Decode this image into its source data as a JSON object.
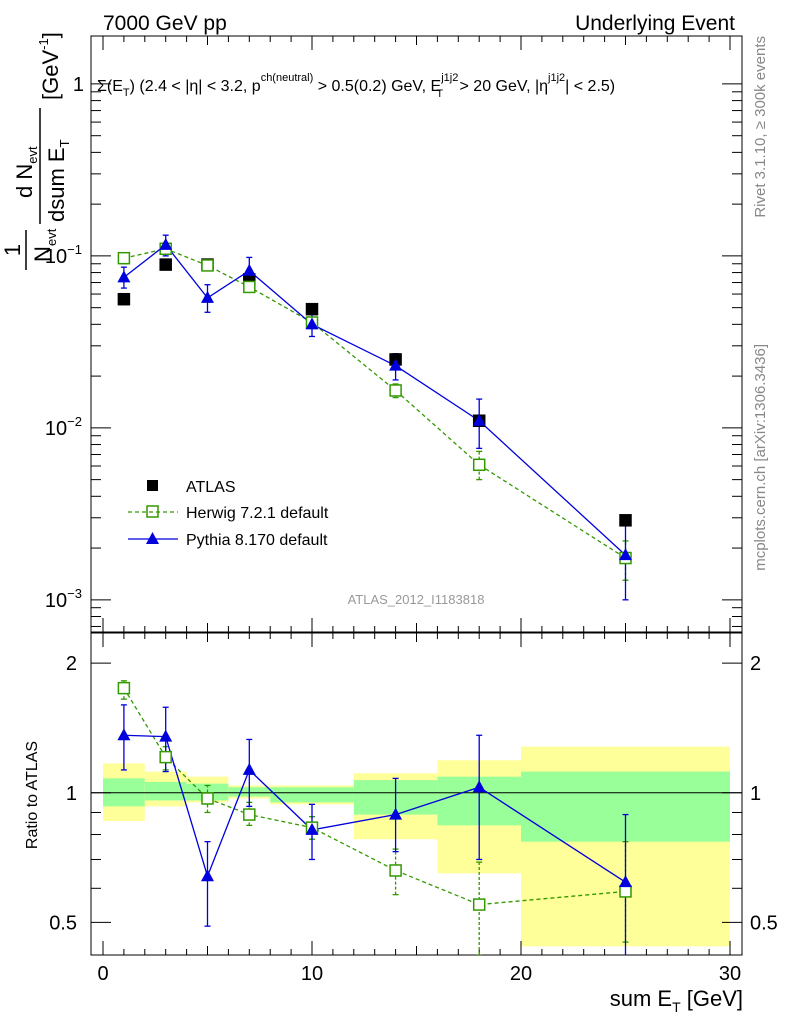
{
  "header": {
    "left": "7000 GeV pp",
    "right": "Underlying Event"
  },
  "selection": {
    "sigma": "Σ(E",
    "sub_t": "T",
    "rest1": ") (2.4 < |η| < 3.2, p",
    "sup_ch": "ch(neutral)",
    "rest2": " > 0.5(0.2) GeV, E",
    "sup_j": "j1j2",
    "sub_t2": "T",
    "rest3": " > 20 GeV, |η",
    "sup_j2": "j1j2",
    "rest4": "| < 2.5)"
  },
  "side_labels": {
    "rivet": "Rivet 3.1.10, ≥ 300k events",
    "mcplots": "mcplots.cern.ch [arXiv:1306.3436]"
  },
  "watermark": "ATLAS_2012_I1183818",
  "ylabel_main": {
    "one": "1",
    "n": "N",
    "n_sub": "evt",
    "frac_num": "d N",
    "frac_num_sub": "evt",
    "frac_den": "dsum E",
    "frac_den_sub": "T",
    "unit": "[GeV",
    "unit_sup": "-1",
    "unit_close": "]"
  },
  "ylabel_ratio": "Ratio to ATLAS",
  "xlabel": {
    "text": "sum E",
    "sub": "T",
    "unit": " [GeV]"
  },
  "legend": [
    {
      "label": "ATLAS"
    },
    {
      "label": "Herwig 7.2.1 default"
    },
    {
      "label": "Pythia 8.170 default"
    }
  ],
  "colors": {
    "atlas": "#000000",
    "herwig": "#339900",
    "pythia": "#0000dd",
    "band_inner": "#99ff99",
    "band_outer": "#ffff99"
  },
  "chart_data": {
    "type": "scatter",
    "x_axis": {
      "range": [
        0,
        30
      ],
      "ticks": [
        0,
        10,
        20,
        30
      ]
    },
    "main_panel": {
      "yscale": "log",
      "ylim": [
        0.00065,
        1.9
      ],
      "yticks": [
        {
          "value": 1,
          "label": "1"
        },
        {
          "value": 0.1,
          "label": "10",
          "exp": "−1"
        },
        {
          "value": 0.01,
          "label": "10",
          "exp": "−2"
        },
        {
          "value": 0.001,
          "label": "10",
          "exp": "−3"
        }
      ]
    },
    "ratio_panel": {
      "yscale": "log",
      "ylim": [
        0.42,
        2.35
      ],
      "yticks": [
        0.5,
        1,
        2
      ],
      "reference": 1
    },
    "bins": [
      {
        "lo": 0,
        "hi": 2,
        "x": 1
      },
      {
        "lo": 2,
        "hi": 4,
        "x": 3
      },
      {
        "lo": 4,
        "hi": 6,
        "x": 5
      },
      {
        "lo": 6,
        "hi": 8,
        "x": 7
      },
      {
        "lo": 8,
        "hi": 12,
        "x": 10
      },
      {
        "lo": 12,
        "hi": 16,
        "x": 14
      },
      {
        "lo": 16,
        "hi": 20,
        "x": 18
      },
      {
        "lo": 20,
        "hi": 30,
        "x": 25
      }
    ],
    "atlas": {
      "name": "ATLAS",
      "values": [
        0.056,
        0.089,
        0.089,
        0.073,
        0.049,
        0.025,
        0.011,
        0.0029
      ],
      "band_inner": [
        [
          0.93,
          1.08
        ],
        [
          0.96,
          1.06
        ],
        [
          0.96,
          1.05
        ],
        [
          0.98,
          1.03
        ],
        [
          0.95,
          1.03
        ],
        [
          0.89,
          1.07
        ],
        [
          0.84,
          1.09
        ],
        [
          0.77,
          1.12
        ]
      ],
      "band_outer": [
        [
          0.86,
          1.17
        ],
        [
          0.93,
          1.12
        ],
        [
          0.95,
          1.09
        ],
        [
          0.97,
          1.04
        ],
        [
          0.94,
          1.04
        ],
        [
          0.78,
          1.11
        ],
        [
          0.65,
          1.19
        ],
        [
          0.44,
          1.28
        ]
      ]
    },
    "series": [
      {
        "name": "Herwig 7.2.1 default",
        "values": [
          0.097,
          0.11,
          0.088,
          0.066,
          0.041,
          0.0165,
          0.0061,
          0.00175
        ],
        "errors": [
          [
            0.09,
            0.104
          ],
          [
            0.103,
            0.116
          ],
          [
            0.084,
            0.092
          ],
          [
            0.062,
            0.07
          ],
          [
            0.038,
            0.044
          ],
          [
            0.015,
            0.018
          ],
          [
            0.005,
            0.0073
          ],
          [
            0.0013,
            0.0022
          ]
        ],
        "ratio": [
          1.75,
          1.21,
          0.97,
          0.89,
          0.83,
          0.66,
          0.55,
          0.59
        ],
        "ratio_errors": [
          [
            1.65,
            1.82
          ],
          [
            1.13,
            1.28
          ],
          [
            0.9,
            1.04
          ],
          [
            0.84,
            0.95
          ],
          [
            0.78,
            0.88
          ],
          [
            0.58,
            0.74
          ],
          [
            0.42,
            0.69
          ],
          [
            0.45,
            0.77
          ]
        ]
      },
      {
        "name": "Pythia 8.170 default",
        "values": [
          0.075,
          0.116,
          0.057,
          0.082,
          0.04,
          0.023,
          0.011,
          0.00182
        ],
        "errors": [
          [
            0.065,
            0.086
          ],
          [
            0.1,
            0.132
          ],
          [
            0.047,
            0.068
          ],
          [
            0.068,
            0.098
          ],
          [
            0.034,
            0.046
          ],
          [
            0.019,
            0.027
          ],
          [
            0.0076,
            0.0147
          ],
          [
            0.001,
            0.0027
          ]
        ],
        "ratio": [
          1.36,
          1.35,
          0.64,
          1.13,
          0.82,
          0.89,
          1.03,
          0.62
        ],
        "ratio_errors": [
          [
            1.13,
            1.6
          ],
          [
            1.12,
            1.58
          ],
          [
            0.49,
            0.77
          ],
          [
            0.93,
            1.33
          ],
          [
            0.7,
            0.94
          ],
          [
            0.73,
            1.08
          ],
          [
            0.7,
            1.36
          ],
          [
            0.34,
            0.89
          ]
        ]
      }
    ]
  }
}
